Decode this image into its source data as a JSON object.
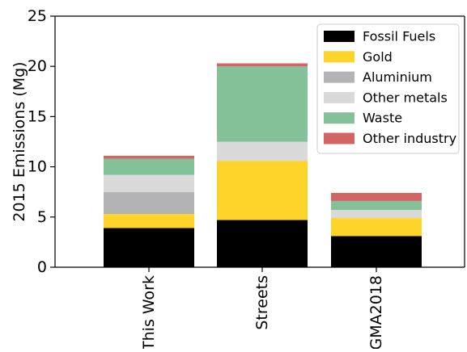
{
  "chart_data": {
    "type": "bar",
    "stacked": true,
    "title": "",
    "xlabel": "",
    "ylabel": "2015 Emissions (Mg)",
    "ylim": [
      0,
      25
    ],
    "yticks": [
      0,
      5,
      10,
      15,
      20,
      25
    ],
    "grid": false,
    "legend_position": "top-right",
    "categories": [
      "This Work",
      "Streets",
      "GMA2018"
    ],
    "series": [
      {
        "name": "Fossil Fuels",
        "color": "#000000",
        "values": [
          3.9,
          4.7,
          3.1
        ]
      },
      {
        "name": "Gold",
        "color": "#ffd42a",
        "values": [
          1.4,
          5.9,
          1.8
        ]
      },
      {
        "name": "Aluminium",
        "color": "#b3b3b6",
        "values": [
          2.2,
          0.0,
          0.0
        ]
      },
      {
        "name": "Other metals",
        "color": "#d9d9d9",
        "values": [
          1.7,
          1.9,
          0.8
        ]
      },
      {
        "name": "Waste",
        "color": "#84c098",
        "values": [
          1.6,
          7.5,
          0.9
        ]
      },
      {
        "name": "Other industry",
        "color": "#d26465",
        "values": [
          0.3,
          0.3,
          0.8
        ]
      }
    ]
  }
}
